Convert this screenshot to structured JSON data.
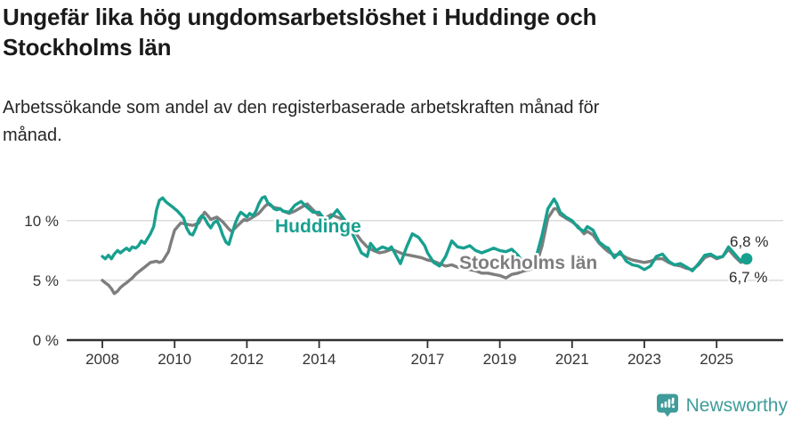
{
  "header": {
    "title_lines": [
      "Ungefär lika hög ungdomsarbetslöshet i Huddinge och",
      "Stockholms län"
    ],
    "subtitle_lines": [
      "Arbetssökande som andel av den registerbaserade arbetskraften månad för",
      "månad."
    ]
  },
  "footer": {
    "brand_name": "Newsworthy",
    "brand_icon": "bar-chart-speech-bubble-icon"
  },
  "colors": {
    "huddinge": "#18a08f",
    "stockholm": "#7e7e7e",
    "grid": "#dbdbdb",
    "axis": "#303030",
    "tick_text": "#333333",
    "end_label_text": "#2b2b2b",
    "brand": "#3f9c9a",
    "title": "#1a1a1a"
  },
  "chart_data": {
    "type": "line",
    "unit": "%",
    "legend": "inline-labels",
    "grid": "horizontal-only",
    "x_axis": {
      "ticks": [
        "2008",
        "2010",
        "2012",
        "2014",
        "2017",
        "2019",
        "2021",
        "2023",
        "2025"
      ],
      "range_years": [
        2007.1,
        2026.8
      ]
    },
    "y_axis": {
      "ticks": [
        {
          "value": 0,
          "label": "0 %"
        },
        {
          "value": 5,
          "label": "5 %"
        },
        {
          "value": 10,
          "label": "10 %"
        }
      ],
      "range": [
        0,
        13.2
      ]
    },
    "series": [
      {
        "name": "Huddinge",
        "color_key": "huddinge",
        "end_label": "6,8 %",
        "end_marker": true,
        "points": [
          [
            2008.0,
            7.0
          ],
          [
            2008.08,
            6.8
          ],
          [
            2008.17,
            7.1
          ],
          [
            2008.25,
            6.8
          ],
          [
            2008.33,
            7.2
          ],
          [
            2008.42,
            7.5
          ],
          [
            2008.5,
            7.3
          ],
          [
            2008.58,
            7.5
          ],
          [
            2008.67,
            7.7
          ],
          [
            2008.75,
            7.5
          ],
          [
            2008.83,
            7.8
          ],
          [
            2008.92,
            7.7
          ],
          [
            2009.0,
            7.9
          ],
          [
            2009.08,
            8.3
          ],
          [
            2009.17,
            8.1
          ],
          [
            2009.25,
            8.5
          ],
          [
            2009.33,
            8.9
          ],
          [
            2009.42,
            9.5
          ],
          [
            2009.5,
            10.9
          ],
          [
            2009.58,
            11.7
          ],
          [
            2009.67,
            11.9
          ],
          [
            2009.75,
            11.6
          ],
          [
            2009.83,
            11.4
          ],
          [
            2009.92,
            11.2
          ],
          [
            2010.0,
            11.0
          ],
          [
            2010.08,
            10.8
          ],
          [
            2010.17,
            10.5
          ],
          [
            2010.25,
            10.2
          ],
          [
            2010.33,
            9.4
          ],
          [
            2010.42,
            8.9
          ],
          [
            2010.5,
            8.8
          ],
          [
            2010.58,
            9.3
          ],
          [
            2010.67,
            10.1
          ],
          [
            2010.75,
            10.4
          ],
          [
            2010.83,
            10.2
          ],
          [
            2010.92,
            9.7
          ],
          [
            2011.0,
            9.4
          ],
          [
            2011.08,
            9.8
          ],
          [
            2011.17,
            10.0
          ],
          [
            2011.25,
            9.5
          ],
          [
            2011.33,
            8.8
          ],
          [
            2011.42,
            8.2
          ],
          [
            2011.5,
            8.0
          ],
          [
            2011.58,
            8.8
          ],
          [
            2011.67,
            9.7
          ],
          [
            2011.75,
            10.3
          ],
          [
            2011.83,
            10.7
          ],
          [
            2011.92,
            10.5
          ],
          [
            2012.0,
            10.3
          ],
          [
            2012.08,
            10.6
          ],
          [
            2012.17,
            10.4
          ],
          [
            2012.25,
            10.8
          ],
          [
            2012.33,
            11.4
          ],
          [
            2012.42,
            11.9
          ],
          [
            2012.5,
            12.0
          ],
          [
            2012.58,
            11.5
          ],
          [
            2012.67,
            11.3
          ],
          [
            2012.75,
            11.0
          ],
          [
            2012.83,
            10.9
          ],
          [
            2012.92,
            11.0
          ],
          [
            2013.0,
            10.8
          ],
          [
            2013.17,
            10.7
          ],
          [
            2013.33,
            11.3
          ],
          [
            2013.5,
            11.6
          ],
          [
            2013.67,
            11.1
          ],
          [
            2013.83,
            10.7
          ],
          [
            2014.0,
            10.7
          ],
          [
            2014.17,
            10.0
          ],
          [
            2014.33,
            10.3
          ],
          [
            2014.5,
            10.9
          ],
          [
            2014.67,
            10.2
          ],
          [
            2014.83,
            9.5
          ],
          [
            2015.0,
            8.4
          ],
          [
            2015.17,
            7.3
          ],
          [
            2015.33,
            7.0
          ],
          [
            2015.42,
            8.1
          ],
          [
            2015.58,
            7.5
          ],
          [
            2015.75,
            7.8
          ],
          [
            2015.92,
            7.6
          ],
          [
            2016.0,
            7.8
          ],
          [
            2016.25,
            6.4
          ],
          [
            2016.42,
            7.8
          ],
          [
            2016.58,
            8.9
          ],
          [
            2016.75,
            8.6
          ],
          [
            2016.92,
            7.9
          ],
          [
            2017.0,
            7.3
          ],
          [
            2017.17,
            6.5
          ],
          [
            2017.33,
            6.2
          ],
          [
            2017.5,
            7.0
          ],
          [
            2017.67,
            8.3
          ],
          [
            2017.83,
            7.8
          ],
          [
            2018.0,
            7.7
          ],
          [
            2018.17,
            7.9
          ],
          [
            2018.33,
            7.5
          ],
          [
            2018.5,
            7.3
          ],
          [
            2018.67,
            7.5
          ],
          [
            2018.83,
            7.7
          ],
          [
            2019.0,
            7.5
          ],
          [
            2019.17,
            7.4
          ],
          [
            2019.33,
            7.6
          ],
          [
            2019.5,
            7.1
          ],
          [
            2019.67,
            6.4
          ],
          [
            2019.83,
            6.3
          ],
          [
            2020.0,
            6.9
          ],
          [
            2020.17,
            8.8
          ],
          [
            2020.33,
            11.0
          ],
          [
            2020.5,
            11.8
          ],
          [
            2020.58,
            11.4
          ],
          [
            2020.67,
            10.7
          ],
          [
            2020.83,
            10.3
          ],
          [
            2021.0,
            10.0
          ],
          [
            2021.17,
            9.4
          ],
          [
            2021.33,
            9.1
          ],
          [
            2021.42,
            9.5
          ],
          [
            2021.58,
            9.2
          ],
          [
            2021.75,
            8.2
          ],
          [
            2021.92,
            7.8
          ],
          [
            2022.0,
            7.7
          ],
          [
            2022.17,
            6.9
          ],
          [
            2022.33,
            7.4
          ],
          [
            2022.5,
            6.6
          ],
          [
            2022.67,
            6.3
          ],
          [
            2022.83,
            6.2
          ],
          [
            2023.0,
            5.9
          ],
          [
            2023.17,
            6.2
          ],
          [
            2023.33,
            7.0
          ],
          [
            2023.5,
            7.2
          ],
          [
            2023.67,
            6.6
          ],
          [
            2023.83,
            6.3
          ],
          [
            2024.0,
            6.4
          ],
          [
            2024.17,
            6.1
          ],
          [
            2024.33,
            5.8
          ],
          [
            2024.5,
            6.4
          ],
          [
            2024.67,
            7.1
          ],
          [
            2024.83,
            7.2
          ],
          [
            2025.0,
            6.9
          ],
          [
            2025.17,
            7.0
          ],
          [
            2025.33,
            7.8
          ],
          [
            2025.5,
            7.2
          ],
          [
            2025.67,
            6.6
          ],
          [
            2025.83,
            6.8
          ]
        ]
      },
      {
        "name": "Stockholms län",
        "color_key": "stockholm",
        "end_label": "6,7 %",
        "end_marker": false,
        "points": [
          [
            2008.0,
            5.0
          ],
          [
            2008.08,
            4.8
          ],
          [
            2008.17,
            4.6
          ],
          [
            2008.25,
            4.3
          ],
          [
            2008.33,
            3.9
          ],
          [
            2008.42,
            4.1
          ],
          [
            2008.5,
            4.4
          ],
          [
            2008.58,
            4.6
          ],
          [
            2008.67,
            4.8
          ],
          [
            2008.75,
            5.0
          ],
          [
            2008.83,
            5.2
          ],
          [
            2008.92,
            5.5
          ],
          [
            2009.0,
            5.7
          ],
          [
            2009.17,
            6.1
          ],
          [
            2009.33,
            6.5
          ],
          [
            2009.5,
            6.6
          ],
          [
            2009.58,
            6.5
          ],
          [
            2009.67,
            6.6
          ],
          [
            2009.83,
            7.4
          ],
          [
            2009.92,
            8.4
          ],
          [
            2010.0,
            9.2
          ],
          [
            2010.17,
            9.8
          ],
          [
            2010.33,
            9.7
          ],
          [
            2010.5,
            9.6
          ],
          [
            2010.67,
            9.8
          ],
          [
            2010.75,
            10.3
          ],
          [
            2010.83,
            10.7
          ],
          [
            2010.92,
            10.4
          ],
          [
            2011.0,
            10.1
          ],
          [
            2011.17,
            10.3
          ],
          [
            2011.33,
            9.9
          ],
          [
            2011.5,
            9.3
          ],
          [
            2011.58,
            9.1
          ],
          [
            2011.75,
            9.6
          ],
          [
            2011.92,
            10.1
          ],
          [
            2012.0,
            10.0
          ],
          [
            2012.17,
            10.3
          ],
          [
            2012.33,
            10.6
          ],
          [
            2012.5,
            11.2
          ],
          [
            2012.58,
            11.4
          ],
          [
            2012.75,
            11.1
          ],
          [
            2012.92,
            11.0
          ],
          [
            2013.0,
            10.8
          ],
          [
            2013.17,
            10.6
          ],
          [
            2013.33,
            10.8
          ],
          [
            2013.5,
            11.1
          ],
          [
            2013.67,
            11.4
          ],
          [
            2013.83,
            10.9
          ],
          [
            2014.0,
            10.4
          ],
          [
            2014.17,
            10.2
          ],
          [
            2014.33,
            10.5
          ],
          [
            2014.5,
            10.3
          ],
          [
            2014.67,
            10.1
          ],
          [
            2014.83,
            9.7
          ],
          [
            2015.0,
            9.0
          ],
          [
            2015.17,
            8.3
          ],
          [
            2015.33,
            7.8
          ],
          [
            2015.5,
            7.5
          ],
          [
            2015.67,
            7.3
          ],
          [
            2015.83,
            7.4
          ],
          [
            2016.0,
            7.6
          ],
          [
            2016.17,
            7.4
          ],
          [
            2016.33,
            7.2
          ],
          [
            2016.5,
            7.1
          ],
          [
            2016.67,
            7.0
          ],
          [
            2016.83,
            6.9
          ],
          [
            2017.0,
            6.7
          ],
          [
            2017.17,
            6.6
          ],
          [
            2017.33,
            6.4
          ],
          [
            2017.5,
            6.2
          ],
          [
            2017.67,
            6.3
          ],
          [
            2017.83,
            6.1
          ],
          [
            2018.0,
            6.0
          ],
          [
            2018.17,
            5.9
          ],
          [
            2018.33,
            5.8
          ],
          [
            2018.5,
            5.6
          ],
          [
            2018.67,
            5.6
          ],
          [
            2018.83,
            5.5
          ],
          [
            2019.0,
            5.4
          ],
          [
            2019.17,
            5.2
          ],
          [
            2019.33,
            5.5
          ],
          [
            2019.5,
            5.6
          ],
          [
            2019.67,
            5.8
          ],
          [
            2019.83,
            5.9
          ],
          [
            2020.0,
            6.2
          ],
          [
            2020.17,
            7.9
          ],
          [
            2020.33,
            10.2
          ],
          [
            2020.5,
            11.0
          ],
          [
            2020.58,
            11.0
          ],
          [
            2020.67,
            10.5
          ],
          [
            2020.83,
            10.2
          ],
          [
            2021.0,
            9.9
          ],
          [
            2021.17,
            9.5
          ],
          [
            2021.33,
            8.9
          ],
          [
            2021.42,
            9.1
          ],
          [
            2021.58,
            8.8
          ],
          [
            2021.75,
            8.1
          ],
          [
            2021.92,
            7.6
          ],
          [
            2022.0,
            7.4
          ],
          [
            2022.17,
            7.1
          ],
          [
            2022.33,
            7.2
          ],
          [
            2022.5,
            6.9
          ],
          [
            2022.67,
            6.7
          ],
          [
            2022.83,
            6.6
          ],
          [
            2023.0,
            6.5
          ],
          [
            2023.17,
            6.6
          ],
          [
            2023.33,
            6.8
          ],
          [
            2023.5,
            6.8
          ],
          [
            2023.67,
            6.5
          ],
          [
            2023.83,
            6.3
          ],
          [
            2024.0,
            6.2
          ],
          [
            2024.17,
            6.0
          ],
          [
            2024.33,
            5.9
          ],
          [
            2024.5,
            6.3
          ],
          [
            2024.67,
            6.9
          ],
          [
            2024.83,
            7.1
          ],
          [
            2025.0,
            6.8
          ],
          [
            2025.17,
            7.0
          ],
          [
            2025.33,
            7.6
          ],
          [
            2025.5,
            7.0
          ],
          [
            2025.67,
            6.5
          ],
          [
            2025.83,
            6.7
          ]
        ]
      }
    ]
  }
}
